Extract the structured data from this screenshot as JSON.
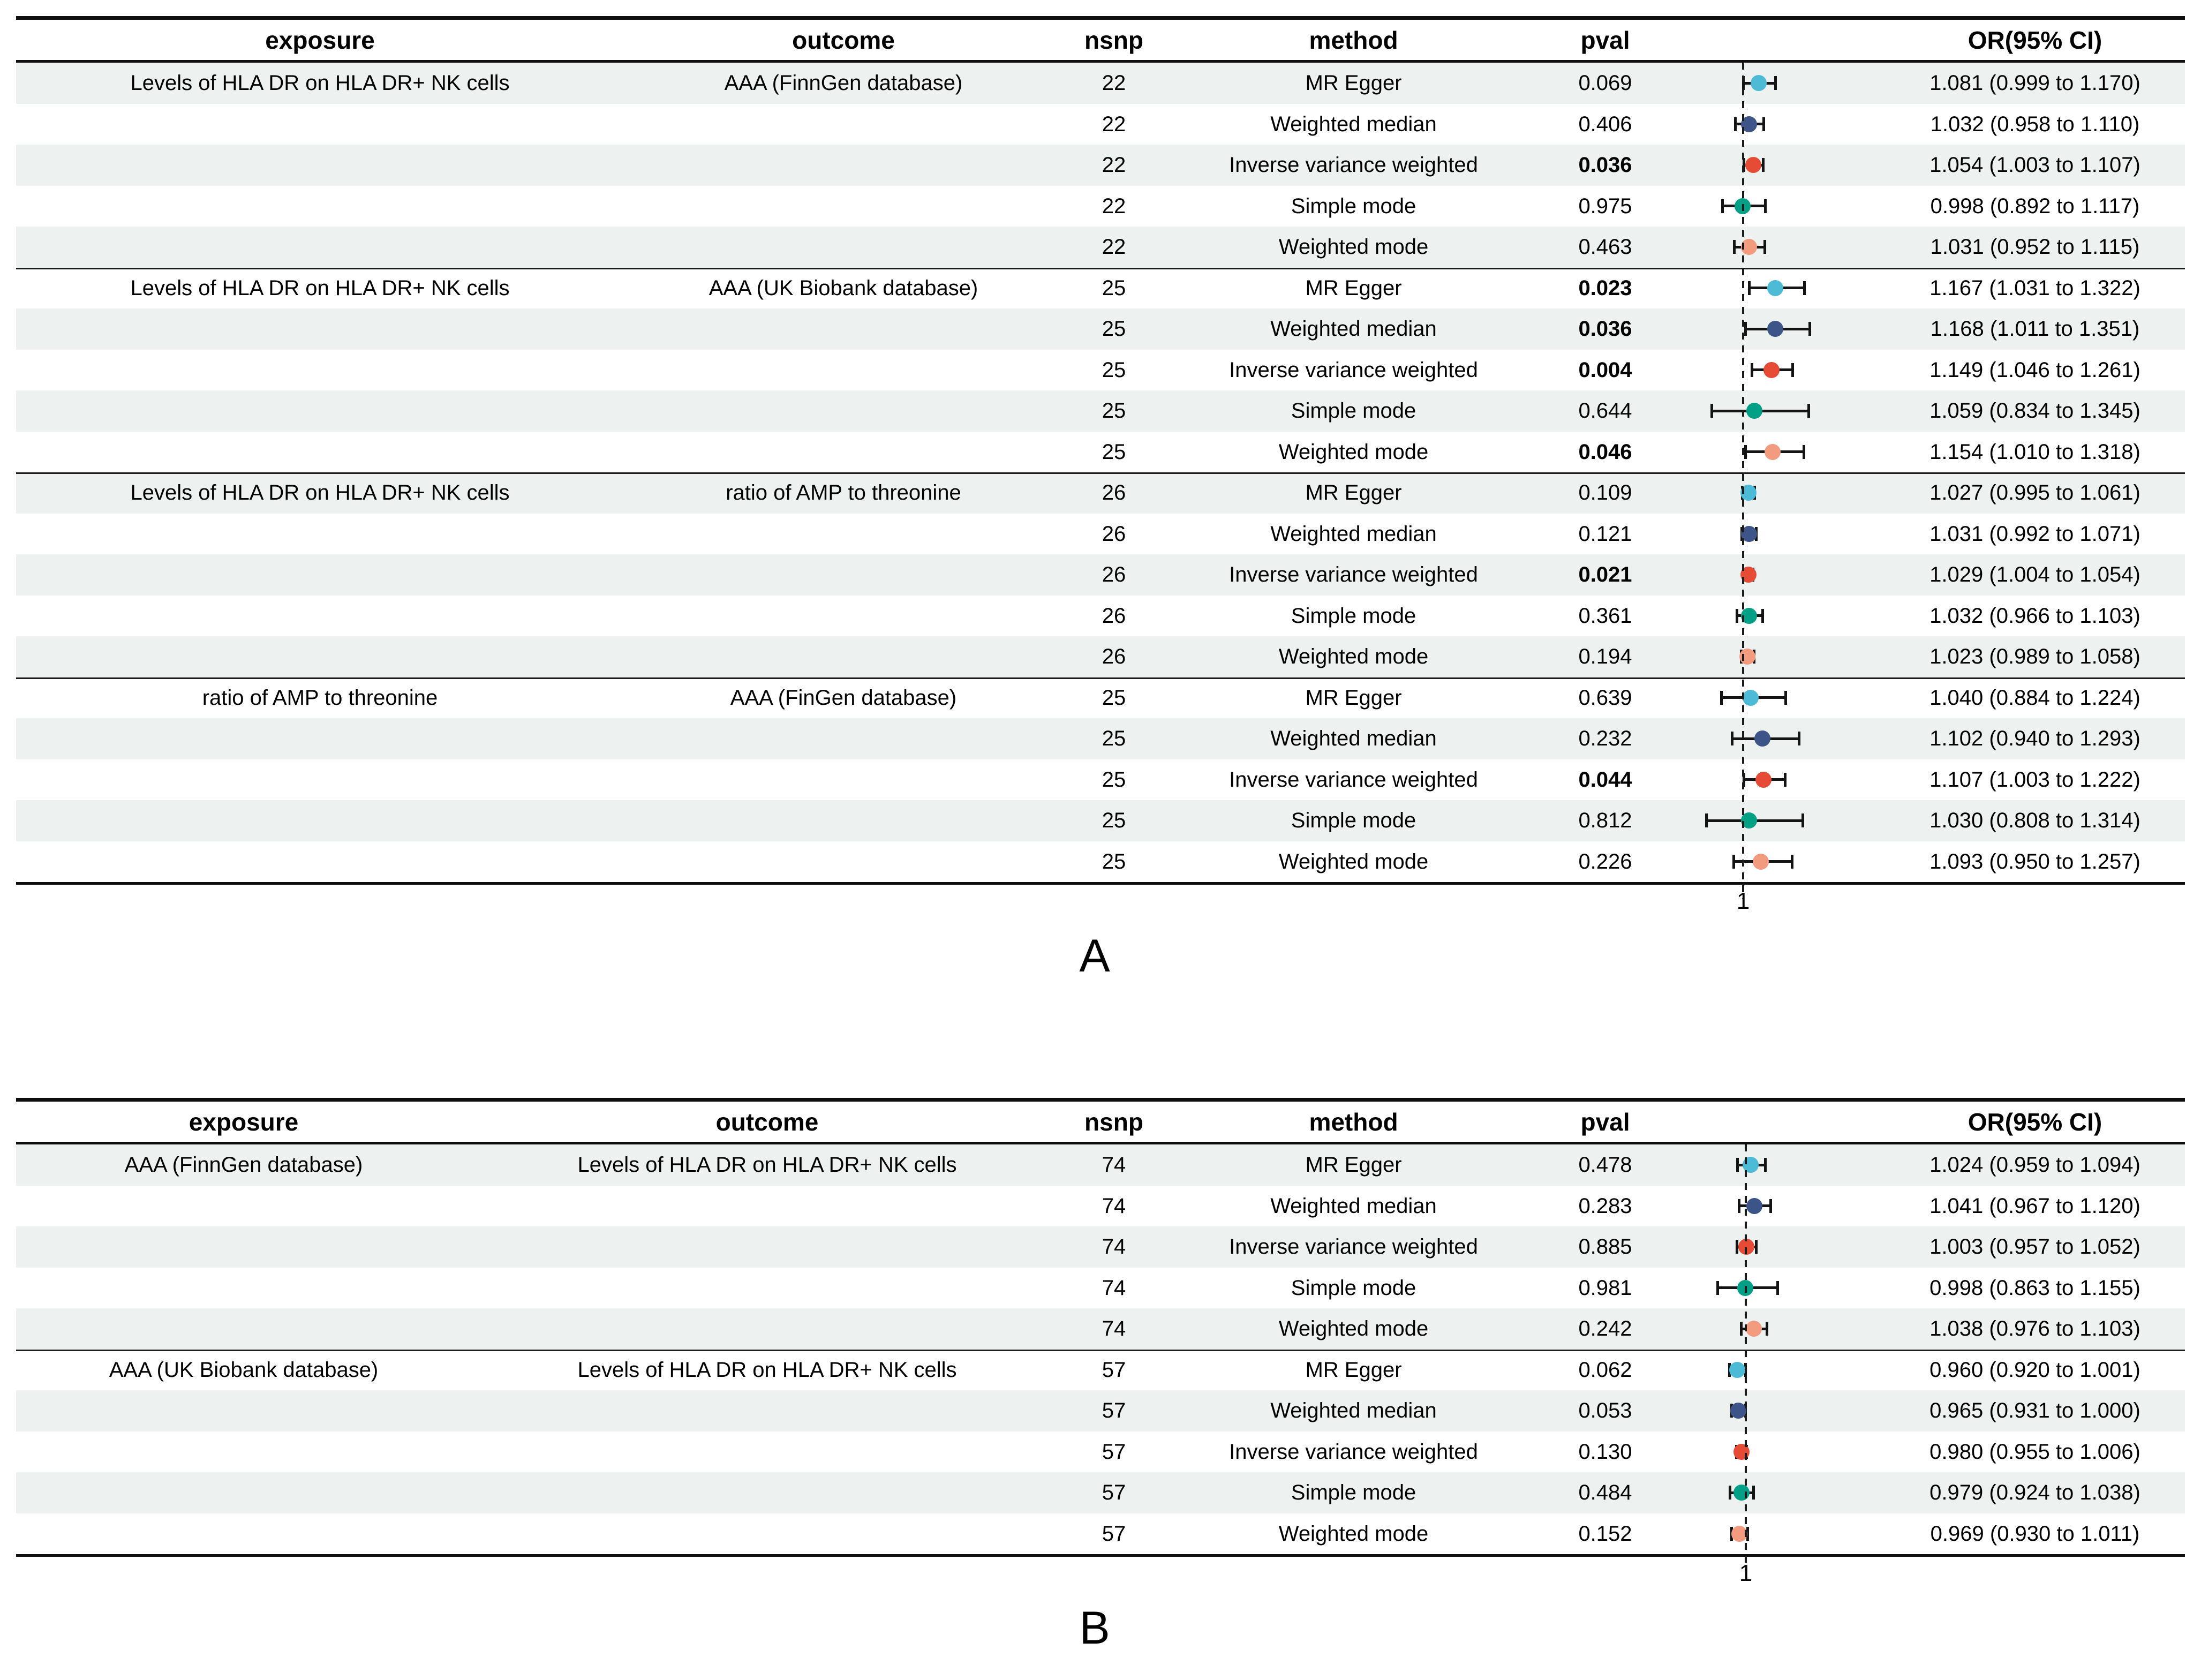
{
  "method_colors": {
    "MR Egger": "#4DBBD5",
    "Weighted median": "#3C5488",
    "Inverse variance weighted": "#E64B35",
    "Simple mode": "#00A087",
    "Weighted mode": "#F39B7F"
  },
  "stripe_color": "#edf1ef",
  "chart_data": [
    {
      "type": "forest",
      "label": "A",
      "headers": {
        "exposure": "exposure",
        "outcome": "outcome",
        "nsnp": "nsnp",
        "method": "method",
        "pval": "pval",
        "or": "OR(95% CI)"
      },
      "axis": {
        "ref_line": 1,
        "tick_label": "1",
        "scale": "OR",
        "grid": false
      },
      "groups": [
        {
          "exposure": "Levels of HLA DR on HLA DR+ NK cells",
          "outcome": "AAA (FinnGen database)",
          "nsnp": "22",
          "rows": [
            {
              "method": "MR Egger",
              "pval": "0.069",
              "pval_bold": false,
              "or": 1.081,
              "lo": 0.999,
              "hi": 1.17,
              "or_text": "1.081 (0.999 to 1.170)"
            },
            {
              "method": "Weighted median",
              "pval": "0.406",
              "pval_bold": false,
              "or": 1.032,
              "lo": 0.958,
              "hi": 1.11,
              "or_text": "1.032 (0.958 to 1.110)"
            },
            {
              "method": "Inverse variance weighted",
              "pval": "0.036",
              "pval_bold": true,
              "or": 1.054,
              "lo": 1.003,
              "hi": 1.107,
              "or_text": "1.054 (1.003 to 1.107)"
            },
            {
              "method": "Simple mode",
              "pval": "0.975",
              "pval_bold": false,
              "or": 0.998,
              "lo": 0.892,
              "hi": 1.117,
              "or_text": "0.998 (0.892 to 1.117)"
            },
            {
              "method": "Weighted mode",
              "pval": "0.463",
              "pval_bold": false,
              "or": 1.031,
              "lo": 0.952,
              "hi": 1.115,
              "or_text": "1.031 (0.952 to 1.115)"
            }
          ]
        },
        {
          "exposure": "Levels of HLA DR on HLA DR+ NK cells",
          "outcome": "AAA (UK Biobank database)",
          "nsnp": "25",
          "rows": [
            {
              "method": "MR Egger",
              "pval": "0.023",
              "pval_bold": true,
              "or": 1.167,
              "lo": 1.031,
              "hi": 1.322,
              "or_text": "1.167 (1.031 to 1.322)"
            },
            {
              "method": "Weighted median",
              "pval": "0.036",
              "pval_bold": true,
              "or": 1.168,
              "lo": 1.011,
              "hi": 1.351,
              "or_text": "1.168 (1.011 to 1.351)"
            },
            {
              "method": "Inverse variance weighted",
              "pval": "0.004",
              "pval_bold": true,
              "or": 1.149,
              "lo": 1.046,
              "hi": 1.261,
              "or_text": "1.149 (1.046 to 1.261)"
            },
            {
              "method": "Simple mode",
              "pval": "0.644",
              "pval_bold": false,
              "or": 1.059,
              "lo": 0.834,
              "hi": 1.345,
              "or_text": "1.059 (0.834 to 1.345)"
            },
            {
              "method": "Weighted mode",
              "pval": "0.046",
              "pval_bold": true,
              "or": 1.154,
              "lo": 1.01,
              "hi": 1.318,
              "or_text": "1.154 (1.010 to 1.318)"
            }
          ]
        },
        {
          "exposure": "Levels of HLA DR on HLA DR+ NK cells",
          "outcome": "ratio of AMP to threonine",
          "nsnp": "26",
          "rows": [
            {
              "method": "MR Egger",
              "pval": "0.109",
              "pval_bold": false,
              "or": 1.027,
              "lo": 0.995,
              "hi": 1.061,
              "or_text": "1.027 (0.995 to 1.061)"
            },
            {
              "method": "Weighted median",
              "pval": "0.121",
              "pval_bold": false,
              "or": 1.031,
              "lo": 0.992,
              "hi": 1.071,
              "or_text": "1.031 (0.992 to 1.071)"
            },
            {
              "method": "Inverse variance weighted",
              "pval": "0.021",
              "pval_bold": true,
              "or": 1.029,
              "lo": 1.004,
              "hi": 1.054,
              "or_text": "1.029 (1.004 to 1.054)"
            },
            {
              "method": "Simple mode",
              "pval": "0.361",
              "pval_bold": false,
              "or": 1.032,
              "lo": 0.966,
              "hi": 1.103,
              "or_text": "1.032 (0.966 to 1.103)"
            },
            {
              "method": "Weighted mode",
              "pval": "0.194",
              "pval_bold": false,
              "or": 1.023,
              "lo": 0.989,
              "hi": 1.058,
              "or_text": "1.023 (0.989 to 1.058)"
            }
          ]
        },
        {
          "exposure": "ratio of AMP to threonine",
          "outcome": "AAA (FinGen database)",
          "nsnp": "25",
          "rows": [
            {
              "method": "MR Egger",
              "pval": "0.639",
              "pval_bold": false,
              "or": 1.04,
              "lo": 0.884,
              "hi": 1.224,
              "or_text": "1.040 (0.884 to 1.224)"
            },
            {
              "method": "Weighted median",
              "pval": "0.232",
              "pval_bold": false,
              "or": 1.102,
              "lo": 0.94,
              "hi": 1.293,
              "or_text": "1.102 (0.940 to 1.293)"
            },
            {
              "method": "Inverse variance weighted",
              "pval": "0.044",
              "pval_bold": true,
              "or": 1.107,
              "lo": 1.003,
              "hi": 1.222,
              "or_text": "1.107 (1.003 to 1.222)"
            },
            {
              "method": "Simple mode",
              "pval": "0.812",
              "pval_bold": false,
              "or": 1.03,
              "lo": 0.808,
              "hi": 1.314,
              "or_text": "1.030 (0.808 to 1.314)"
            },
            {
              "method": "Weighted mode",
              "pval": "0.226",
              "pval_bold": false,
              "or": 1.093,
              "lo": 0.95,
              "hi": 1.257,
              "or_text": "1.093 (0.950 to 1.257)"
            }
          ]
        }
      ]
    },
    {
      "type": "forest",
      "label": "B",
      "headers": {
        "exposure": "exposure",
        "outcome": "outcome",
        "nsnp": "nsnp",
        "method": "method",
        "pval": "pval",
        "or": "OR(95% CI)"
      },
      "axis": {
        "ref_line": 1,
        "tick_label": "1",
        "scale": "OR",
        "grid": false
      },
      "groups": [
        {
          "exposure": "AAA (FinnGen database)",
          "outcome": "Levels of HLA DR on HLA DR+ NK cells",
          "nsnp": "74",
          "rows": [
            {
              "method": "MR Egger",
              "pval": "0.478",
              "pval_bold": false,
              "or": 1.024,
              "lo": 0.959,
              "hi": 1.094,
              "or_text": "1.024 (0.959 to 1.094)"
            },
            {
              "method": "Weighted median",
              "pval": "0.283",
              "pval_bold": false,
              "or": 1.041,
              "lo": 0.967,
              "hi": 1.12,
              "or_text": "1.041 (0.967 to 1.120)"
            },
            {
              "method": "Inverse variance weighted",
              "pval": "0.885",
              "pval_bold": false,
              "or": 1.003,
              "lo": 0.957,
              "hi": 1.052,
              "or_text": "1.003 (0.957 to 1.052)"
            },
            {
              "method": "Simple mode",
              "pval": "0.981",
              "pval_bold": false,
              "or": 0.998,
              "lo": 0.863,
              "hi": 1.155,
              "or_text": "0.998 (0.863 to 1.155)"
            },
            {
              "method": "Weighted mode",
              "pval": "0.242",
              "pval_bold": false,
              "or": 1.038,
              "lo": 0.976,
              "hi": 1.103,
              "or_text": "1.038 (0.976 to 1.103)"
            }
          ]
        },
        {
          "exposure": "AAA (UK Biobank database)",
          "outcome": "Levels of HLA DR on HLA DR+ NK cells",
          "nsnp": "57",
          "rows": [
            {
              "method": "MR Egger",
              "pval": "0.062",
              "pval_bold": false,
              "or": 0.96,
              "lo": 0.92,
              "hi": 1.001,
              "or_text": "0.960 (0.920 to 1.001)"
            },
            {
              "method": "Weighted median",
              "pval": "0.053",
              "pval_bold": false,
              "or": 0.965,
              "lo": 0.931,
              "hi": 1.0,
              "or_text": "0.965 (0.931 to 1.000)"
            },
            {
              "method": "Inverse variance weighted",
              "pval": "0.130",
              "pval_bold": false,
              "or": 0.98,
              "lo": 0.955,
              "hi": 1.006,
              "or_text": "0.980 (0.955 to 1.006)"
            },
            {
              "method": "Simple mode",
              "pval": "0.484",
              "pval_bold": false,
              "or": 0.979,
              "lo": 0.924,
              "hi": 1.038,
              "or_text": "0.979 (0.924 to 1.038)"
            },
            {
              "method": "Weighted mode",
              "pval": "0.152",
              "pval_bold": false,
              "or": 0.969,
              "lo": 0.93,
              "hi": 1.011,
              "or_text": "0.969 (0.930 to 1.011)"
            }
          ]
        }
      ]
    }
  ]
}
